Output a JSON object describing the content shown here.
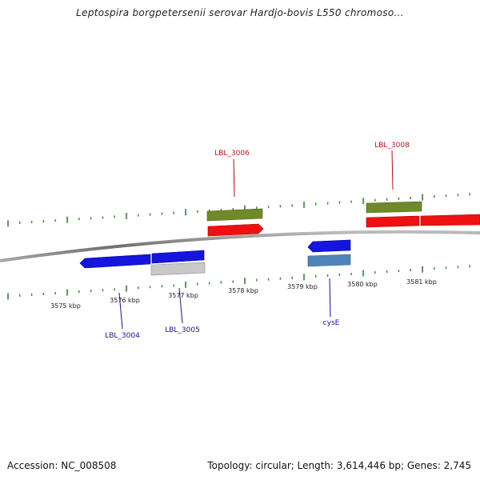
{
  "title": "Leptospira borgpetersenii serovar Hardjo-bovis L550 chromoso...",
  "footer": {
    "accession": "Accession: NC_008508",
    "summary": "Topology: circular; Length: 3,614,446 bp; Genes: 2,745"
  },
  "colors": {
    "forward_gene": "#ee1111",
    "forward_cds_other": "#6e8a2a",
    "reverse_gene": "#1515dd",
    "reverse_cds_other": "#c8c8c8",
    "reverse_cds_blue": "#4f84b8",
    "backbone": "#8a8a8a",
    "tick": "#2f8a2f",
    "label_forward": "#cc1111",
    "label_reverse": "#1111bb"
  },
  "scale_labels": [
    "3575 kbp",
    "3576 kbp",
    "3577 kbp",
    "3578 kbp",
    "3579 kbp",
    "3580 kbp",
    "3581 kbp"
  ],
  "gene_labels": {
    "LBL_3006": "LBL_3006",
    "LBL_3008": "LBL_3008",
    "LBL_3004": "LBL_3004",
    "LBL_3005": "LBL_3005",
    "cysE": "cysE"
  }
}
